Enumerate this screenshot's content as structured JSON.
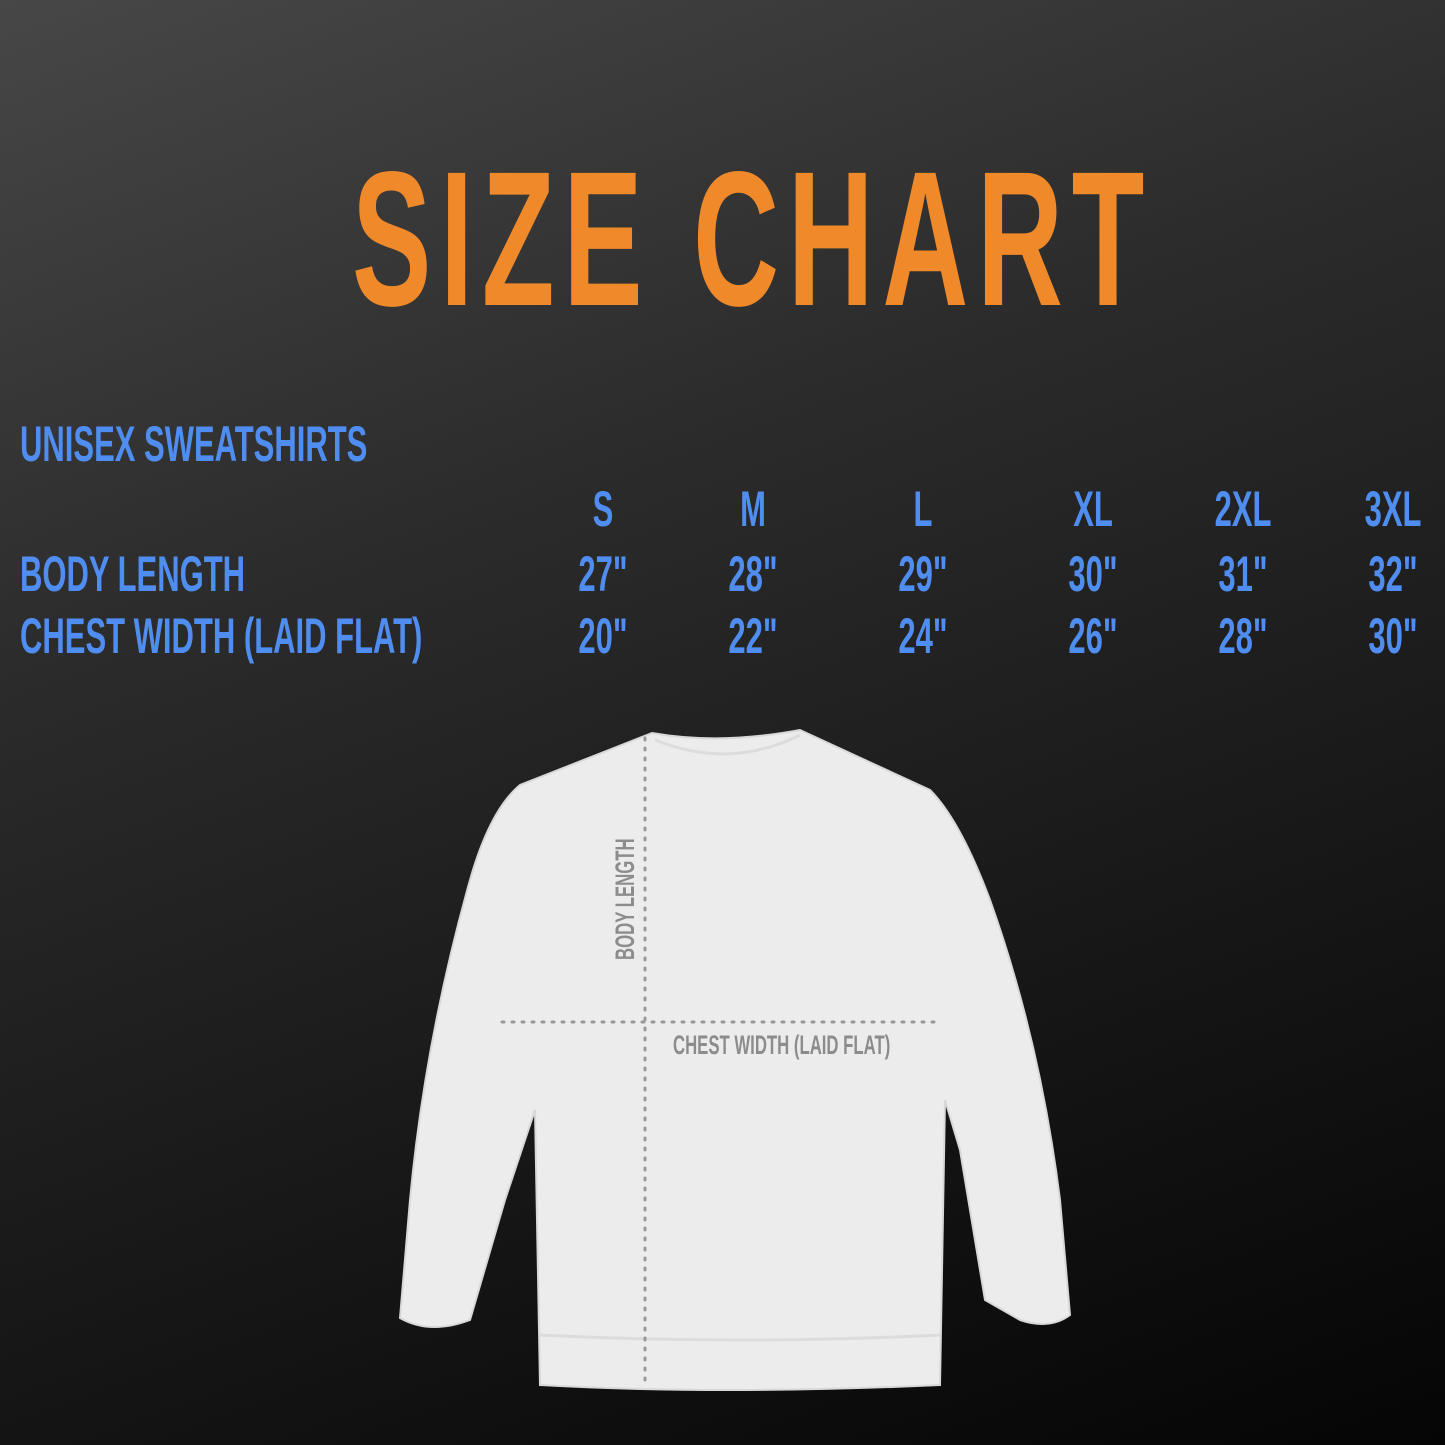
{
  "title": "SIZE CHART",
  "colors": {
    "title": "#f0892a",
    "text": "#4f8ef0",
    "guide_label": "#8c8c8c",
    "shirt": "#eeeeee"
  },
  "table": {
    "section": "UNISEX SWEATSHIRTS",
    "sizes": [
      "S",
      "M",
      "L",
      "XL",
      "2XL",
      "3XL"
    ],
    "rows": [
      {
        "label": "BODY LENGTH",
        "values": [
          "27\"",
          "28\"",
          "29\"",
          "30\"",
          "31\"",
          "32\""
        ]
      },
      {
        "label": "CHEST WIDTH (LAID FLAT)",
        "values": [
          "20\"",
          "22\"",
          "24\"",
          "26\"",
          "28\"",
          "30\""
        ]
      }
    ]
  },
  "diagram": {
    "body_length_label": "BODY LENGTH",
    "chest_width_label": "CHEST WIDTH (LAID FLAT)"
  }
}
